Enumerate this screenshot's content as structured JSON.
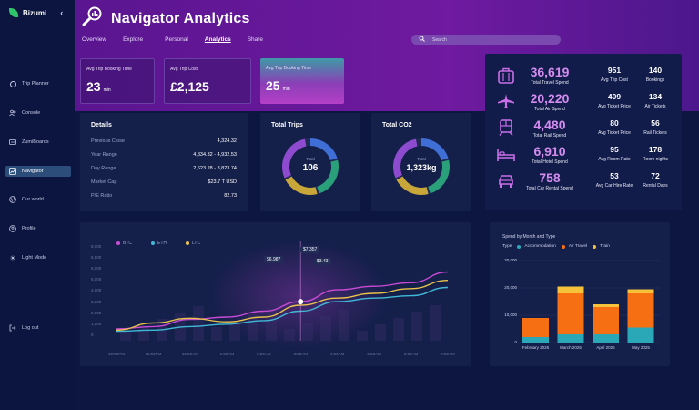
{
  "app": {
    "name": "Bizumi",
    "collapse": "‹"
  },
  "sidebar": {
    "items": [
      {
        "label": "Trip Planner",
        "icon": "compass-icon",
        "active": false
      },
      {
        "label": "Console",
        "icon": "people-icon",
        "active": false
      },
      {
        "label": "ZumiBoards",
        "icon": "board-icon",
        "active": false
      },
      {
        "label": "Navigator",
        "icon": "chart-icon",
        "active": true
      },
      {
        "label": "Our world",
        "icon": "globe-icon",
        "active": false
      },
      {
        "label": "Profile",
        "icon": "profile-icon",
        "active": false
      },
      {
        "label": "Light Mode",
        "icon": "sun-icon",
        "active": false
      },
      {
        "label": "Log out",
        "icon": "logout-icon",
        "active": false
      }
    ]
  },
  "header": {
    "title": "Navigator Analytics",
    "tabs": [
      {
        "label": "Overview",
        "active": false
      },
      {
        "label": "Explore",
        "active": false
      },
      {
        "label": "Personal",
        "active": false
      },
      {
        "label": "Analytics",
        "active": true
      },
      {
        "label": "Share",
        "active": false
      }
    ],
    "search_placeholder": "Search"
  },
  "kpis": [
    {
      "label": "Avg Trip Booking Time",
      "value": "23",
      "unit": "min"
    },
    {
      "label": "Avg Trip Cost",
      "value": "£2,125",
      "unit": ""
    },
    {
      "label": "Avg Trip Booking Time",
      "value": "25",
      "unit": "min"
    }
  ],
  "details": {
    "title": "Details",
    "rows": [
      {
        "k": "Previous Close",
        "v": "4,324.32"
      },
      {
        "k": "Year Range",
        "v": "4,834.32 - 4,932.53"
      },
      {
        "k": "Day Range",
        "v": "2,623.28 - 3,823.74"
      },
      {
        "k": "Market Cap",
        "v": "$23.7 T USD"
      },
      {
        "k": "P/E Ratio",
        "v": "82.73"
      }
    ]
  },
  "donuts": [
    {
      "title": "Total Trips",
      "center_label": "Total",
      "value": "106"
    },
    {
      "title": "Total CO2",
      "center_label": "Total",
      "value": "1,323kg"
    }
  ],
  "spend": {
    "big": [
      {
        "value": "36,619",
        "label": "Total Travel Spend",
        "icon": "luggage-icon"
      },
      {
        "value": "20,220",
        "label": "Total Air Spend",
        "icon": "plane-icon"
      },
      {
        "value": "4,480",
        "label": "Total Rail Spend",
        "icon": "train-icon"
      },
      {
        "value": "6,910",
        "label": "Total Hotel Spend",
        "icon": "bed-icon"
      },
      {
        "value": "758",
        "label": "Total Car Rental Spend",
        "icon": "car-icon"
      }
    ],
    "small": [
      [
        {
          "value": "951",
          "label": "Avg Trip Cost"
        },
        {
          "value": "140",
          "label": "Bookings"
        }
      ],
      [
        {
          "value": "409",
          "label": "Avg Ticket Price"
        },
        {
          "value": "134",
          "label": "Air Tickets"
        }
      ],
      [
        {
          "value": "80",
          "label": "Avg Ticket Price"
        },
        {
          "value": "56",
          "label": "Rail Tickets"
        }
      ],
      [
        {
          "value": "95",
          "label": "Avg Room Rate"
        },
        {
          "value": "178",
          "label": "Room nights"
        }
      ],
      [
        {
          "value": "53",
          "label": "Avg Car Hire Rate"
        },
        {
          "value": "72",
          "label": "Rental Days"
        }
      ]
    ]
  },
  "colors": {
    "btc": "#c94bd6",
    "eth": "#41b9d6",
    "ltc": "#e8c34a",
    "accommodation": "#2aa8b8",
    "air": "#f66f12",
    "train": "#f5c23a"
  },
  "chart_data": [
    {
      "type": "line",
      "legend": [
        "BTC",
        "ETH",
        "LTC"
      ],
      "y_ticks": [
        "8,000",
        "6,500",
        "6,000",
        "5,000",
        "4,000",
        "3,000",
        "2,000",
        "1,000",
        "0"
      ],
      "x": [
        "10:59PM",
        "11:59PM",
        "12:59AM",
        "1:59AM",
        "2:59AM",
        "3:59AM",
        "4:59AM",
        "5:59AM",
        "6:59AM",
        "7:59AM"
      ],
      "ylim": [
        0,
        8000
      ],
      "series": [
        {
          "name": "BTC",
          "values": [
            1000,
            1200,
            1800,
            2000,
            2500,
            3300,
            4300,
            4600,
            4900,
            5800
          ]
        },
        {
          "name": "ETH",
          "values": [
            800,
            900,
            1200,
            1400,
            1700,
            2500,
            3300,
            3600,
            3800,
            4500
          ]
        },
        {
          "name": "LTC",
          "values": [
            900,
            1500,
            1900,
            1600,
            2000,
            3000,
            3600,
            4000,
            4400,
            5100
          ]
        }
      ],
      "annotations": [
        "$7.357",
        "$6.987",
        "$3.43"
      ]
    },
    {
      "type": "bar",
      "title": "Spend by Month and Type",
      "legend_title": "Type",
      "categories": [
        "February 2025",
        "March 2025",
        "April 2025",
        "May 2025"
      ],
      "ylim": [
        0,
        30000
      ],
      "y_ticks": [
        "30,000",
        "20,000",
        "10,000",
        "0"
      ],
      "series": [
        {
          "name": "Accommodation",
          "values": [
            2000,
            3000,
            3000,
            5500
          ]
        },
        {
          "name": "Air Travel",
          "values": [
            7000,
            15000,
            10000,
            12500
          ]
        },
        {
          "name": "Train",
          "values": [
            0,
            2500,
            1000,
            1500
          ]
        }
      ]
    }
  ]
}
